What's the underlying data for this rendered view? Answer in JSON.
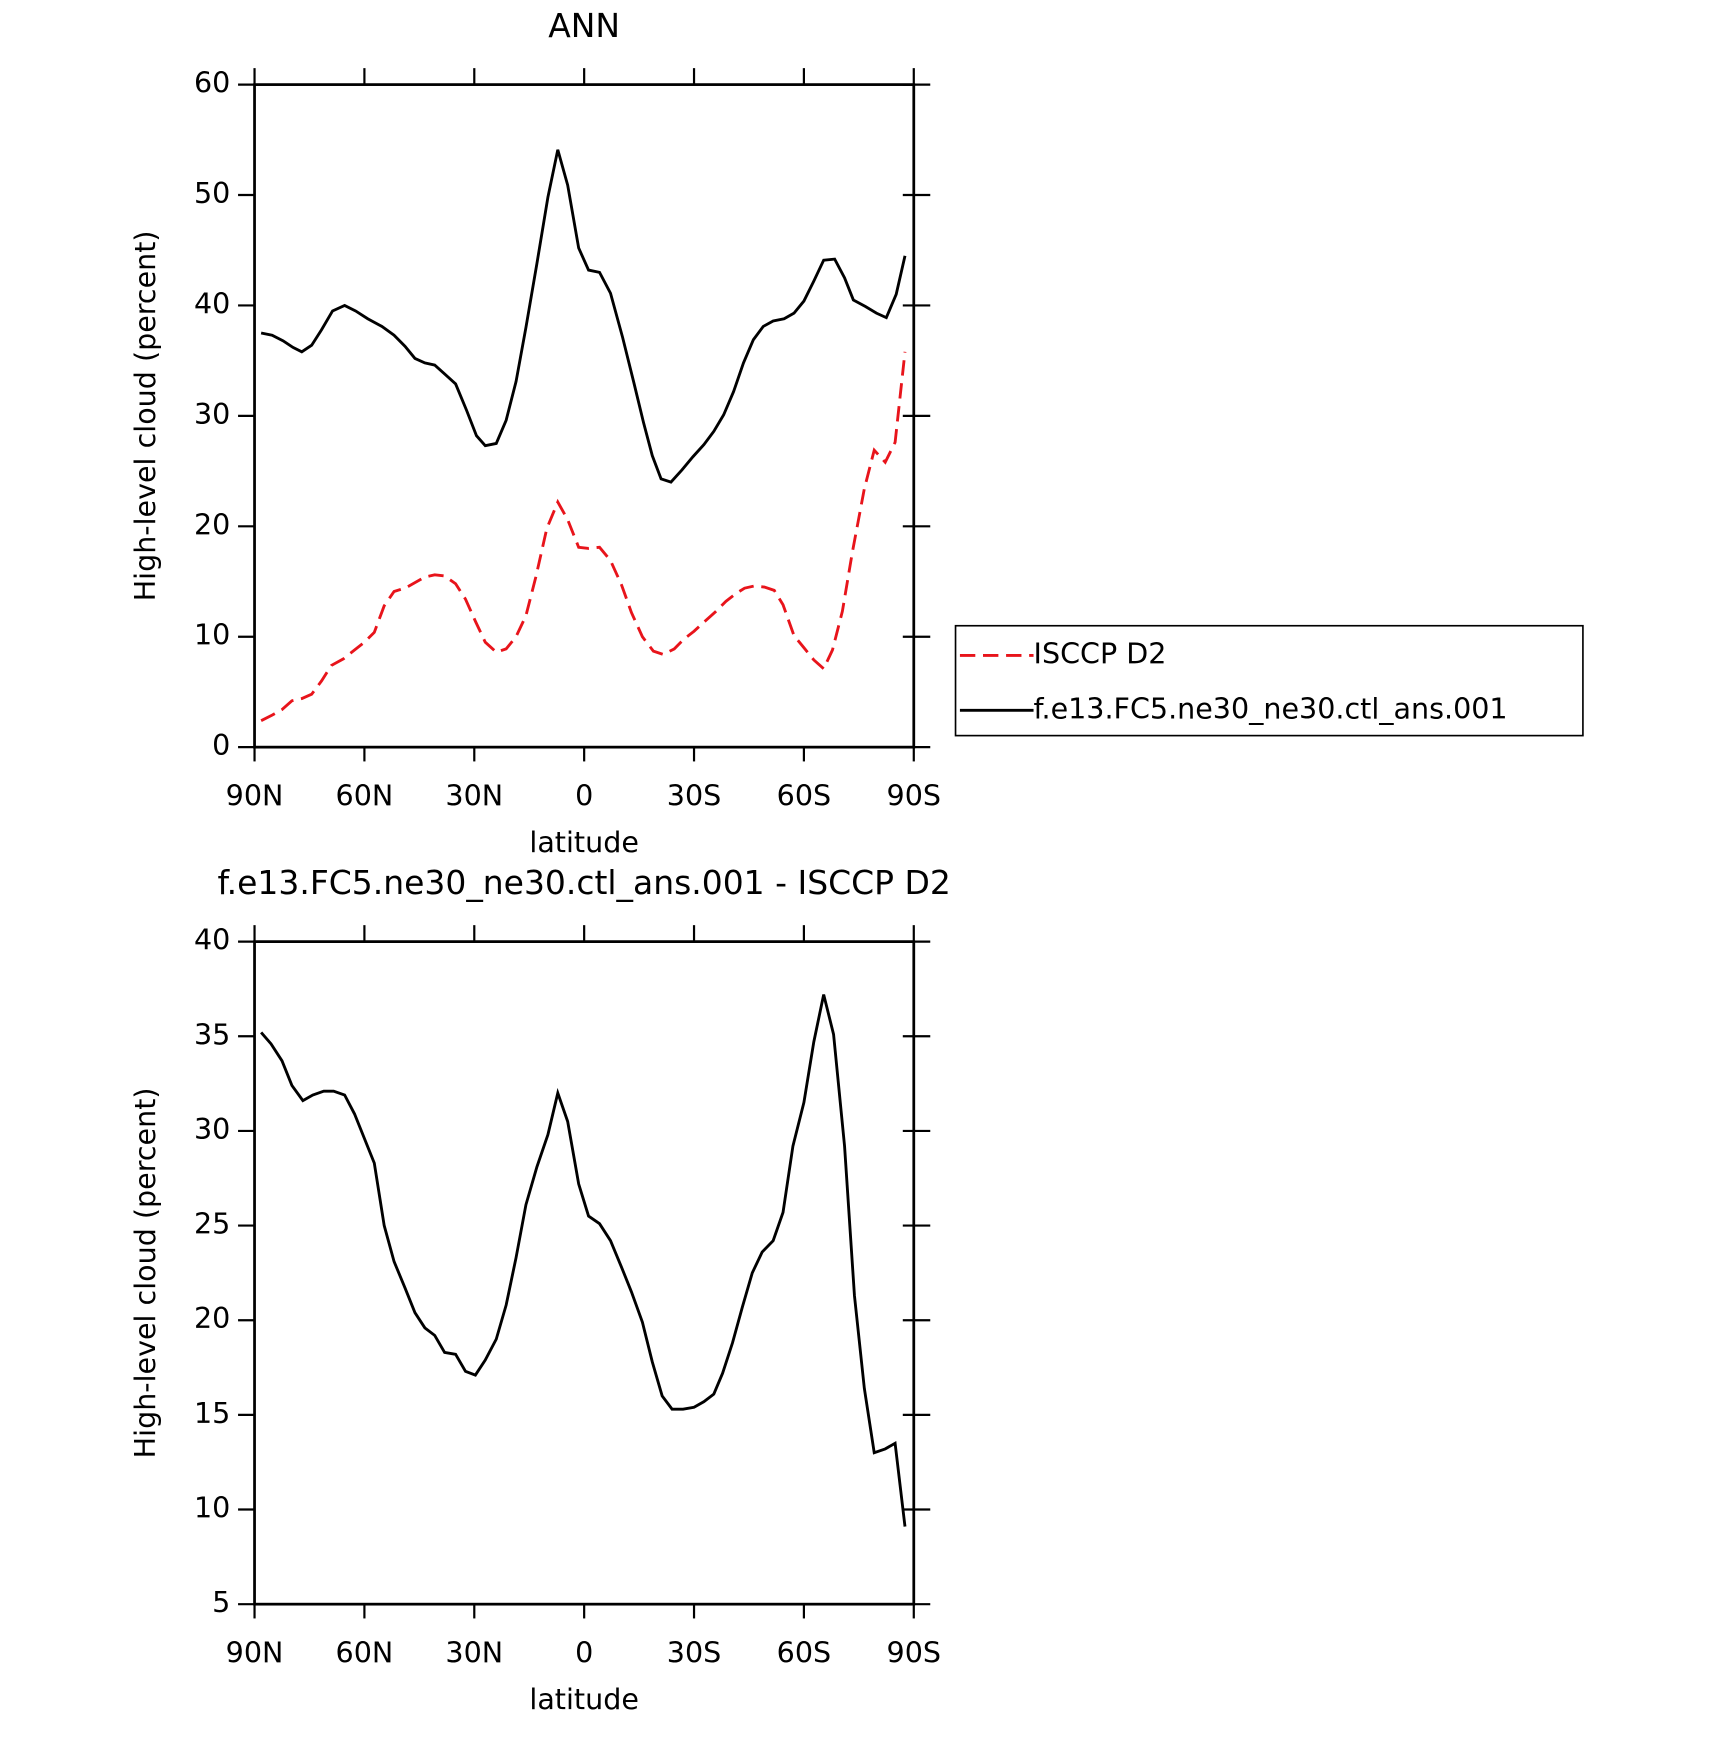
{
  "chart_data": [
    {
      "type": "line",
      "title": "ANN",
      "xlabel": "latitude",
      "ylabel": "High-level cloud (percent)",
      "xlim": [
        90,
        -90
      ],
      "xticks": [
        {
          "value": 90,
          "label": "90N"
        },
        {
          "value": 60,
          "label": "60N"
        },
        {
          "value": 30,
          "label": "30N"
        },
        0,
        {
          "value": -30,
          "label": "30S"
        },
        {
          "value": -60,
          "label": "60S"
        },
        {
          "value": -90,
          "label": "90S"
        }
      ],
      "ylim": [
        0,
        60
      ],
      "yticks": [
        0,
        10,
        20,
        30,
        40,
        50,
        60
      ],
      "legend": "right",
      "series": [
        {
          "name": "ISCCP D2",
          "color": "#e8141b",
          "linestyle": "dashed",
          "x": [
            88.2,
            85.2,
            82.5,
            79.8,
            77.1,
            74.4,
            71.7,
            69.0,
            65.7,
            62.7,
            60.0,
            57.3,
            54.6,
            51.9,
            48.9,
            46.2,
            43.5,
            40.8,
            38.1,
            35.1,
            32.4,
            29.7,
            27.0,
            24.0,
            21.3,
            18.6,
            15.9,
            13.2,
            10.2,
            7.2,
            4.5,
            1.5,
            -1.2,
            -4.2,
            -7.2,
            -10.2,
            -12.9,
            -15.9,
            -18.9,
            -21.6,
            -24.6,
            -27.3,
            -30.0,
            -33.0,
            -36.0,
            -38.7,
            -41.4,
            -43.8,
            -46.5,
            -49.2,
            -51.9,
            -54.3,
            -57.3,
            -60.0,
            -62.7,
            -65.4,
            -67.8,
            -70.5,
            -73.2,
            -76.5,
            -79.2,
            -82.2,
            -84.9,
            -87.6
          ],
          "values": [
            2.4,
            2.9,
            3.4,
            4.2,
            4.4,
            4.8,
            6.0,
            7.4,
            8.0,
            8.8,
            9.5,
            10.4,
            12.8,
            14.1,
            14.4,
            14.9,
            15.4,
            15.6,
            15.5,
            14.8,
            13.4,
            11.4,
            9.5,
            8.6,
            8.9,
            10.0,
            11.9,
            15.4,
            19.8,
            22.2,
            20.6,
            18.1,
            18.0,
            18.1,
            16.9,
            14.7,
            12.2,
            10.0,
            8.7,
            8.4,
            8.9,
            9.8,
            10.5,
            11.4,
            12.3,
            13.2,
            13.9,
            14.4,
            14.6,
            14.5,
            14.2,
            12.9,
            10.1,
            9.0,
            7.9,
            7.1,
            8.8,
            12.3,
            17.6,
            23.4,
            26.9,
            25.8,
            27.6,
            35.8
          ]
        },
        {
          "name": "f.e13.FC5.ne30_ne30.ctl_ans.001",
          "color": "#000000",
          "linestyle": "solid",
          "x": [
            88.2,
            85.2,
            82.2,
            79.5,
            77.1,
            74.4,
            71.7,
            68.7,
            65.4,
            62.4,
            59.1,
            55.2,
            51.9,
            48.9,
            46.2,
            43.5,
            40.8,
            38.1,
            35.1,
            32.1,
            29.4,
            27.0,
            24.0,
            21.3,
            18.6,
            15.9,
            12.9,
            9.9,
            7.2,
            4.5,
            1.5,
            -1.2,
            -4.2,
            -7.2,
            -10.5,
            -13.5,
            -16.2,
            -18.6,
            -21.0,
            -23.7,
            -26.7,
            -29.7,
            -32.7,
            -35.4,
            -38.1,
            -40.8,
            -43.5,
            -46.2,
            -48.9,
            -51.6,
            -54.6,
            -57.3,
            -60.0,
            -62.7,
            -65.4,
            -68.4,
            -71.1,
            -73.5,
            -76.8,
            -79.8,
            -82.5,
            -85.2,
            -87.6
          ],
          "values": [
            37.5,
            37.3,
            36.8,
            36.2,
            35.8,
            36.4,
            37.8,
            39.5,
            40.0,
            39.5,
            38.8,
            38.1,
            37.3,
            36.3,
            35.2,
            34.8,
            34.6,
            33.8,
            32.9,
            30.5,
            28.2,
            27.3,
            27.5,
            29.6,
            33.1,
            38.0,
            43.8,
            49.8,
            54.1,
            50.9,
            45.2,
            43.2,
            43.0,
            41.1,
            37.1,
            33.1,
            29.4,
            26.4,
            24.3,
            24.0,
            25.1,
            26.3,
            27.4,
            28.6,
            30.1,
            32.2,
            34.8,
            36.9,
            38.1,
            38.6,
            38.8,
            39.3,
            40.4,
            42.2,
            44.1,
            44.2,
            42.5,
            40.5,
            39.9,
            39.3,
            38.9,
            41.0,
            44.5
          ]
        }
      ]
    },
    {
      "type": "line",
      "title": "f.e13.FC5.ne30_ne30.ctl_ans.001 - ISCCP D2",
      "xlabel": "latitude",
      "ylabel": "High-level cloud (percent)",
      "xlim": [
        90,
        -90
      ],
      "xticks": [
        {
          "value": 90,
          "label": "90N"
        },
        {
          "value": 60,
          "label": "60N"
        },
        {
          "value": 30,
          "label": "30N"
        },
        0,
        {
          "value": -30,
          "label": "30S"
        },
        {
          "value": -60,
          "label": "60S"
        },
        {
          "value": -90,
          "label": "90S"
        }
      ],
      "ylim": [
        5,
        40
      ],
      "yticks": [
        5,
        10,
        15,
        20,
        25,
        30,
        35,
        40
      ],
      "series": [
        {
          "color": "#000000",
          "linestyle": "solid",
          "x": [
            88.2,
            85.5,
            82.5,
            79.8,
            76.8,
            74.1,
            71.1,
            68.4,
            65.4,
            62.7,
            60.0,
            57.3,
            54.6,
            51.9,
            48.9,
            46.2,
            43.5,
            40.8,
            38.1,
            35.1,
            32.4,
            29.7,
            27.0,
            24.0,
            21.3,
            18.6,
            15.9,
            12.9,
            9.9,
            7.2,
            4.5,
            1.5,
            -1.2,
            -4.2,
            -7.2,
            -10.2,
            -12.9,
            -15.9,
            -18.6,
            -21.3,
            -24.0,
            -27.0,
            -30.0,
            -32.7,
            -35.4,
            -37.8,
            -40.5,
            -43.2,
            -45.9,
            -48.6,
            -51.6,
            -54.3,
            -57.0,
            -60.0,
            -62.7,
            -65.4,
            -68.1,
            -71.1,
            -73.8,
            -76.5,
            -79.2,
            -82.2,
            -84.9,
            -87.6
          ],
          "values": [
            35.2,
            34.6,
            33.7,
            32.4,
            31.6,
            31.9,
            32.1,
            32.1,
            31.9,
            30.9,
            29.6,
            28.3,
            25.0,
            23.1,
            21.7,
            20.4,
            19.6,
            19.2,
            18.3,
            18.2,
            17.3,
            17.1,
            17.9,
            19.0,
            20.8,
            23.3,
            26.1,
            28.1,
            29.8,
            32.0,
            30.5,
            27.2,
            25.5,
            25.1,
            24.2,
            22.8,
            21.5,
            19.9,
            17.8,
            16.0,
            15.3,
            15.3,
            15.4,
            15.7,
            16.1,
            17.2,
            18.8,
            20.7,
            22.5,
            23.6,
            24.2,
            25.7,
            29.2,
            31.5,
            34.7,
            37.2,
            35.1,
            29.2,
            21.3,
            16.4,
            13.0,
            13.2,
            13.5,
            9.1
          ]
        }
      ]
    }
  ]
}
